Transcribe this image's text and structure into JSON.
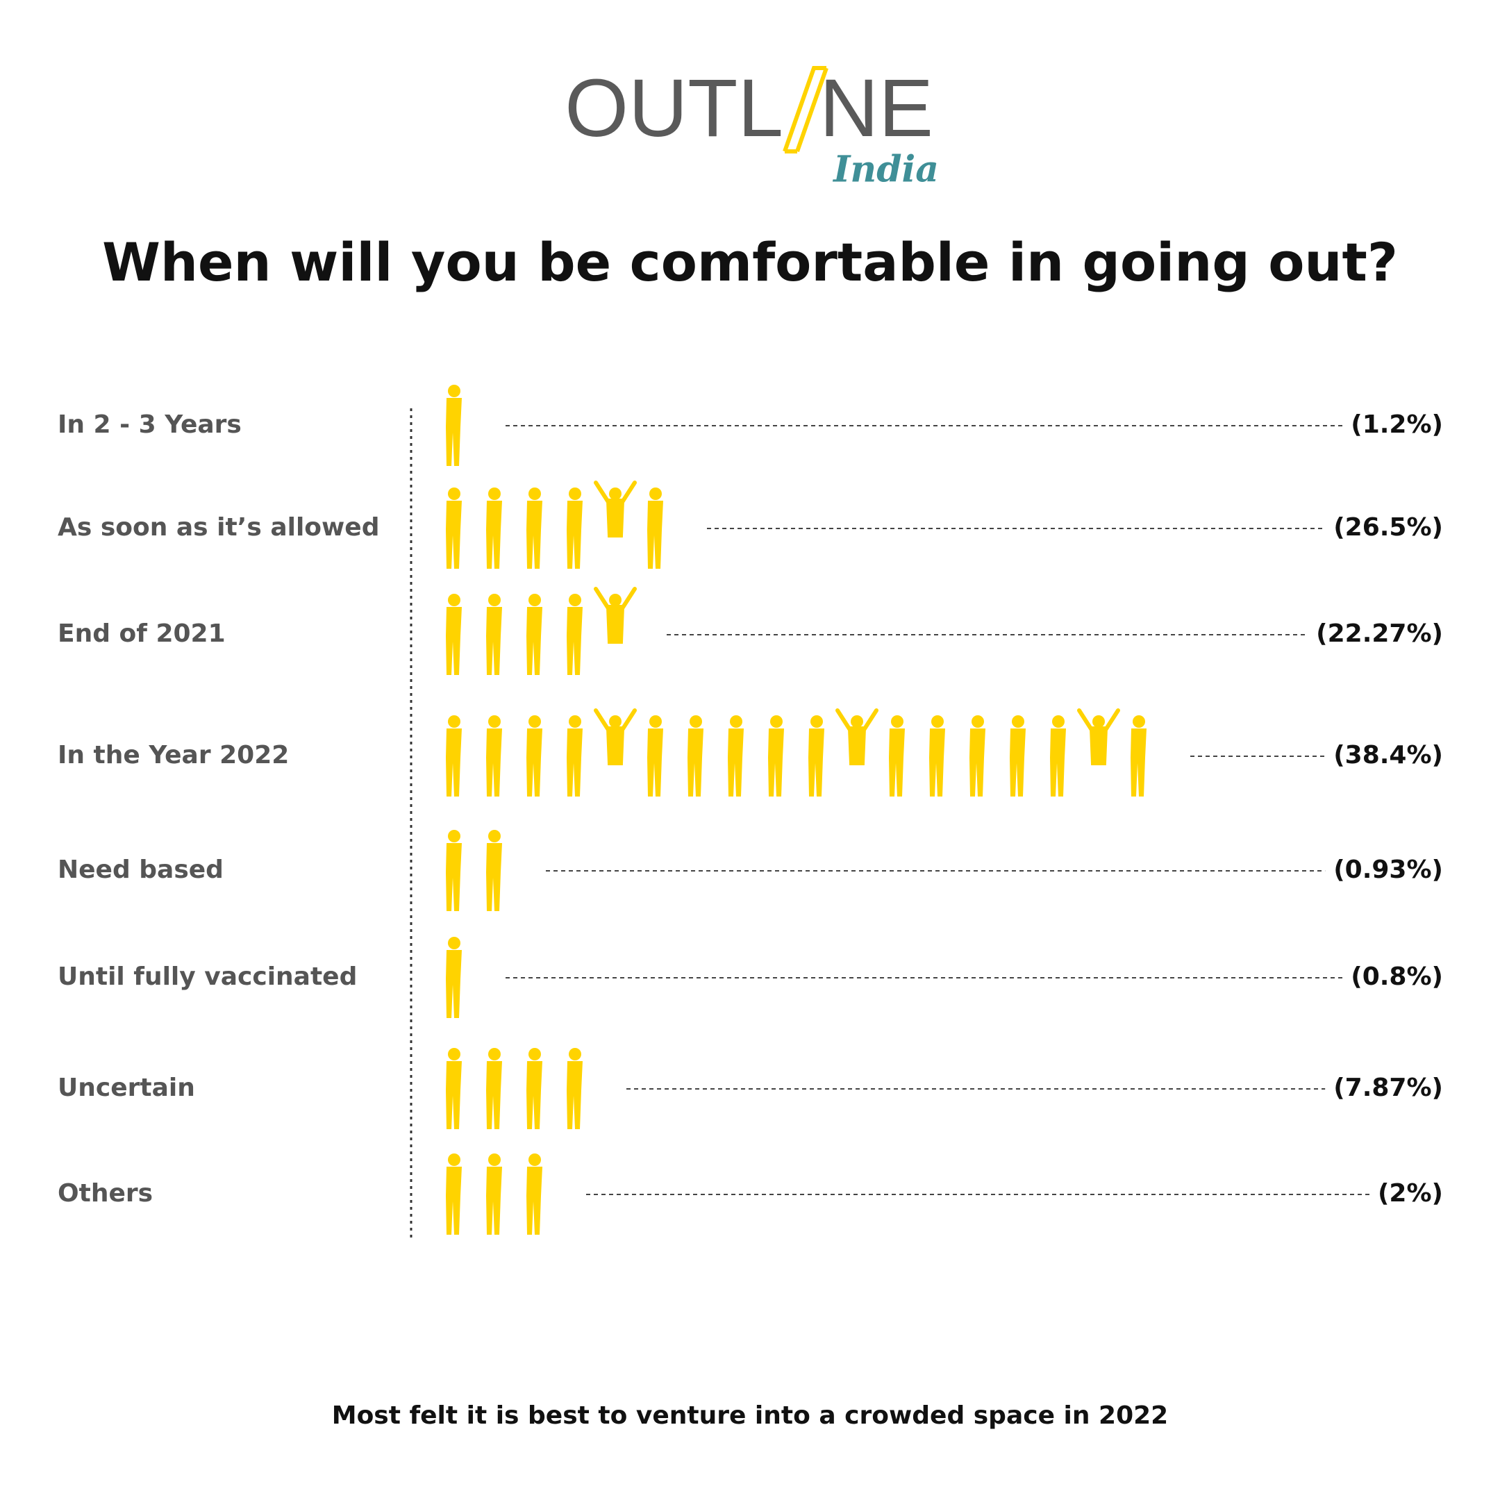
{
  "logo": {
    "left": "OUTL",
    "right": "NE",
    "sub": "India"
  },
  "chart_data": {
    "type": "pictograph",
    "title": "When will you be comfortable in going out?",
    "categories": [
      "In 2 - 3 Years",
      "As soon as it’s allowed",
      "End of 2021",
      "In the Year 2022",
      "Need based",
      "Until fully vaccinated",
      "Uncertain",
      "Others"
    ],
    "values": [
      1.2,
      26.5,
      22.27,
      38.4,
      0.93,
      0.8,
      7.87,
      2
    ],
    "value_labels": [
      "(1.2%)",
      "(26.5%)",
      "(22.27%)",
      "(38.4%)",
      "(0.93%)",
      "(0.8%)",
      "(7.87%)",
      "(2%)"
    ],
    "color": "#ffd300",
    "caption": "Most felt it is best to venture into a crowded space in 2022"
  }
}
